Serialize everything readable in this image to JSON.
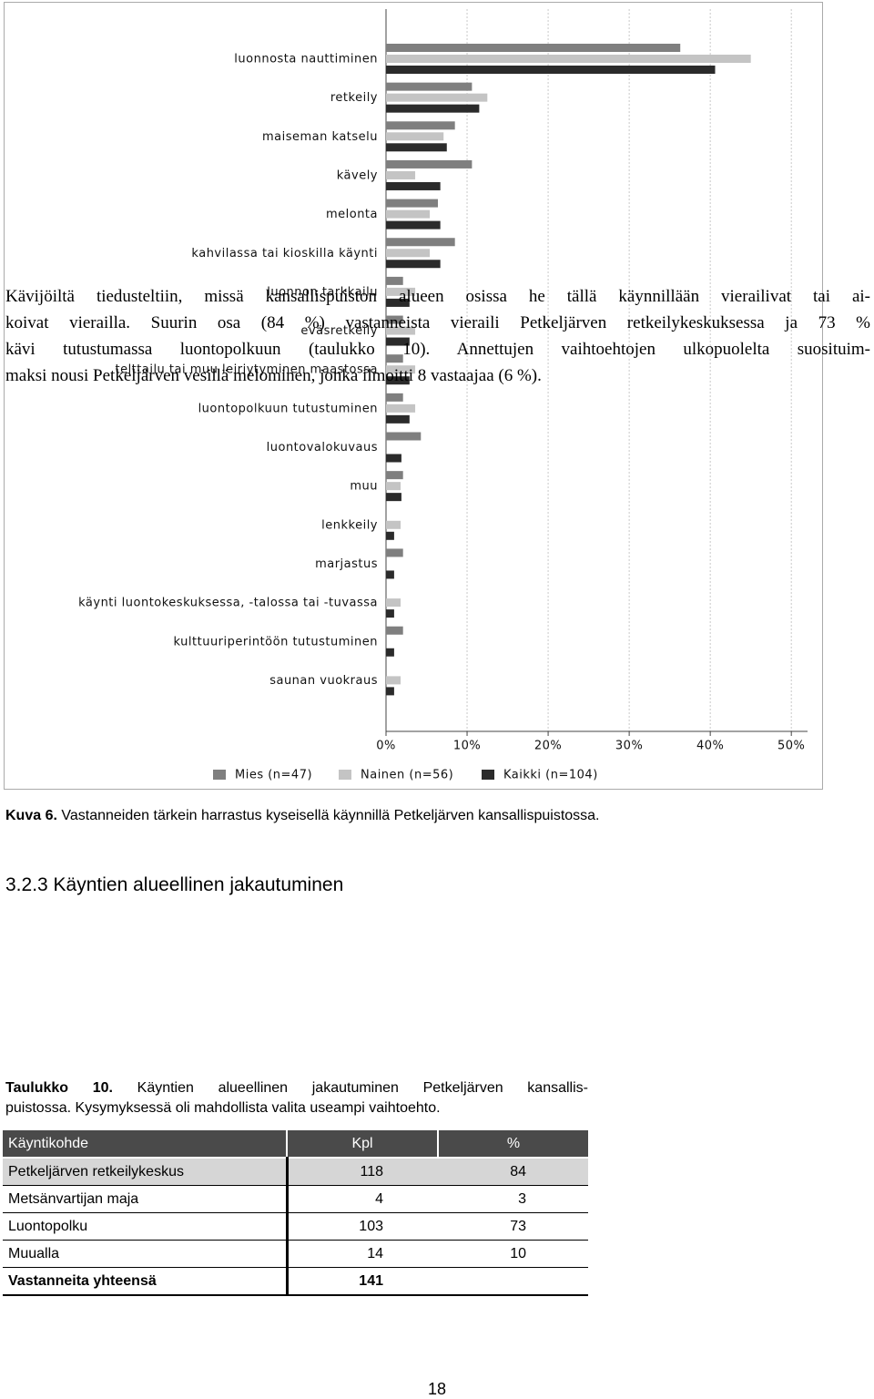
{
  "chart_data": {
    "type": "bar",
    "orientation": "horizontal",
    "categories": [
      "luonnosta nauttiminen",
      "retkeily",
      "maiseman katselu",
      "kävely",
      "melonta",
      "kahvilassa tai kioskilla käynti",
      "luonnon tarkkailu",
      "eväsretkeily",
      "telttailu tai muu leiriytyminen maastossa",
      "luontopolkuun tutustuminen",
      "luontovalokuvaus",
      "muu",
      "lenkkeily",
      "marjastus",
      "käynti luontokeskuksessa, -talossa tai -tuvassa",
      "kulttuuriperintöön tutustuminen",
      "saunan vuokraus"
    ],
    "series": [
      {
        "name": "Mies (n=47)",
        "color": "#7f7f7f",
        "values": [
          36.3,
          10.6,
          8.5,
          10.6,
          6.4,
          8.5,
          2.1,
          2.1,
          2.1,
          2.1,
          4.3,
          2.1,
          0,
          2.1,
          0,
          2.1,
          0
        ]
      },
      {
        "name": "Nainen (n=56)",
        "color": "#c4c4c4",
        "values": [
          45,
          12.5,
          7.1,
          3.6,
          5.4,
          5.4,
          3.6,
          3.6,
          3.6,
          3.6,
          0,
          1.8,
          1.8,
          0,
          1.8,
          0,
          1.8
        ]
      },
      {
        "name": "Kaikki (n=104)",
        "color": "#2b2b2b",
        "values": [
          40.6,
          11.5,
          7.5,
          6.7,
          6.7,
          6.7,
          2.9,
          2.9,
          2.9,
          2.9,
          1.9,
          1.9,
          1.0,
          1.0,
          1.0,
          1.0,
          1.0
        ]
      }
    ],
    "xlim": [
      0,
      52
    ],
    "xticks": [
      {
        "value": 0,
        "label": "0%"
      },
      {
        "value": 10,
        "label": "10%"
      },
      {
        "value": 20,
        "label": "20%"
      },
      {
        "value": 30,
        "label": "30%"
      },
      {
        "value": 40,
        "label": "40%"
      },
      {
        "value": 50,
        "label": "50%"
      }
    ],
    "grid": true,
    "legend": "bottom"
  },
  "caption": {
    "label": "Kuva 6.",
    "text": "Vastanneiden tärkein harrastus kyseisellä käynnillä Petkeljärven kansallispuistossa."
  },
  "heading": "3.2.3 Käyntien alueellinen jakautuminen",
  "paragraph": [
    "Kävijöiltä tiedusteltiin, missä kansallispuiston alueen osissa he tällä käynnillään vierailivat tai ai-",
    "koivat vierailla. Suurin osa (84 %) vastanneista vieraili Petkeljärven retkeilykeskuksessa ja 73 %",
    "kävi tutustumassa luontopolkuun (taulukko 10). Annettujen vaihtoehtojen ulkopuolelta suosituim-",
    "maksi nousi Petkeljärven vesillä melominen, jonka ilmoitti 8 vastaajaa (6 %)."
  ],
  "table": {
    "caption": {
      "label": "Taulukko 10.",
      "lines": [
        "Käyntien alueellinen jakautuminen Petkeljärven kansallis-",
        "puistossa. Kysymyksessä oli mahdollista valita useampi vaihtoehto."
      ]
    },
    "header": [
      "Käyntikohde",
      "Kpl",
      "%"
    ],
    "rows": [
      [
        "Petkeljärven retkeilykeskus",
        118,
        84
      ],
      [
        "Metsänvartijan maja",
        4,
        3
      ],
      [
        "Luontopolku",
        103,
        73
      ],
      [
        "Muualla",
        14,
        10
      ]
    ],
    "total": [
      "Vastanneita yhteensä",
      141
    ]
  },
  "page_number": "18"
}
